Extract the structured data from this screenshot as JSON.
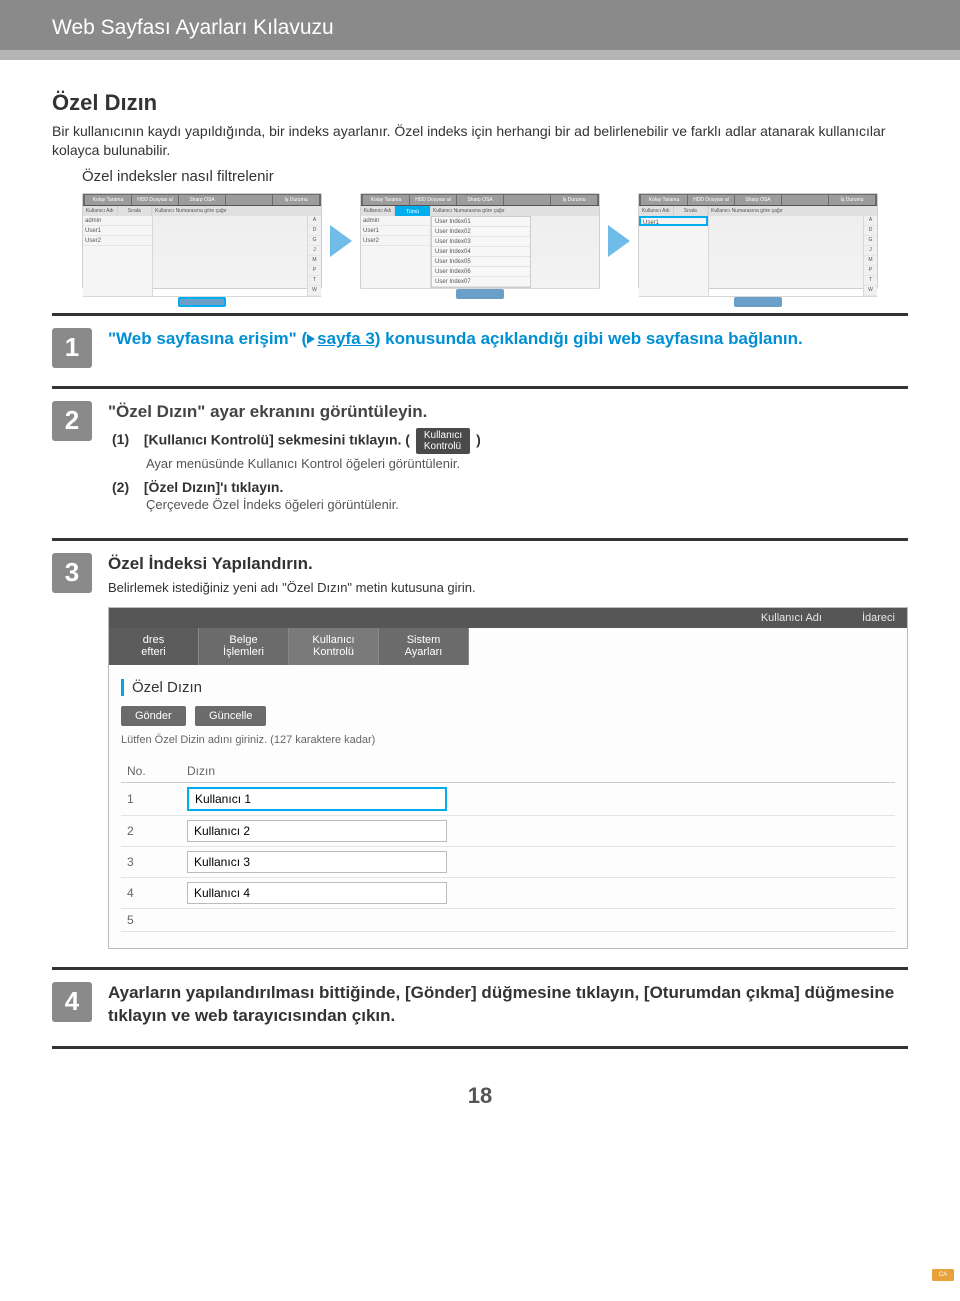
{
  "header": {
    "title": "Web Sayfası Ayarları Kılavuzu"
  },
  "section": {
    "title": "Özel Dızın",
    "intro": "Bir kullanıcının kaydı yapıldığında, bir indeks ayarlanır. Özel indeks için herhangi bir ad belirlenebilir ve farklı adlar atanarak kullanıcılar kolayca bulunabilir.",
    "subheading": "Özel indeksler nasıl filtrelenir"
  },
  "thumb": {
    "tabs": [
      "Kolay Tarama",
      "HDD Dosyası al",
      "Sharp OSA",
      "",
      "İş Durumu"
    ],
    "lhdr": [
      "Kullanıcı Adı",
      "Sırala"
    ],
    "rhdr": "Kullanıcı Numarasına göre çağır",
    "names": [
      "admin",
      "User1",
      "User2"
    ],
    "idx": [
      "A",
      "D",
      "G",
      "J",
      "M",
      "P",
      "T",
      "W"
    ],
    "tumu": "Tümü",
    "ca": "CA",
    "popup": [
      "User Index01",
      "User Index02",
      "User Index03",
      "User Index04",
      "User Index05",
      "User Index06",
      "User Index07"
    ]
  },
  "steps": {
    "s1": {
      "num": "1",
      "text_a": "\"Web sayfasına erişim\" (",
      "link": "sayfa 3",
      "text_b": ") konusunda açıklandığı gibi web sayfasına bağlanın."
    },
    "s2": {
      "num": "2",
      "title": "\"Özel Dızın\" ayar ekranını görüntüleyin.",
      "i1_label": "(1)",
      "i1_text_a": "[Kullanıcı Kontrolü] sekmesini tıklayın. (",
      "chip_l1": "Kullanıcı",
      "chip_l2": "Kontrolü",
      "i1_text_b": ")",
      "i1_sub": "Ayar menüsünde Kullanıcı Kontrol öğeleri görüntülenir.",
      "i2_label": "(2)",
      "i2_text": "[Özel Dızın]'ı tıklayın.",
      "i2_sub": "Çerçevede Özel İndeks öğeleri görüntülenir."
    },
    "s3": {
      "num": "3",
      "title": "Özel İndeksi Yapılandırın.",
      "sub": "Belirlemek istediğiniz yeni adı \"Özel Dızın\" metin kutusuna girin."
    },
    "s4": {
      "num": "4",
      "text": "Ayarların yapılandırılması bittiğinde, [Gönder] düğmesine tıklayın, [Oturumdan çıkma] düğmesine tıklayın ve web tarayıcısından çıkın."
    }
  },
  "cfg": {
    "topbar": {
      "user_label": "Kullanıcı Adı",
      "role": "İdareci"
    },
    "tabs": {
      "t1a": "dres",
      "t1b": "efteri",
      "t2a": "Belge",
      "t2b": "İşlemleri",
      "t3a": "Kullanıcı",
      "t3b": "Kontrolü",
      "t4a": "Sistem",
      "t4b": "Ayarları"
    },
    "page_title": "Özel Dızın",
    "btn_submit": "Gönder",
    "btn_update": "Güncelle",
    "hint": "Lütfen Özel Dizin adını giriniz. (127 karaktere kadar)",
    "col_no": "No.",
    "col_dizin": "Dızın",
    "rows": [
      {
        "no": "1",
        "val": "Kullanıcı 1"
      },
      {
        "no": "2",
        "val": "Kullanıcı 2"
      },
      {
        "no": "3",
        "val": "Kullanıcı 3"
      },
      {
        "no": "4",
        "val": "Kullanıcı 4"
      },
      {
        "no": "5",
        "val": ""
      }
    ]
  },
  "page_num": "18"
}
